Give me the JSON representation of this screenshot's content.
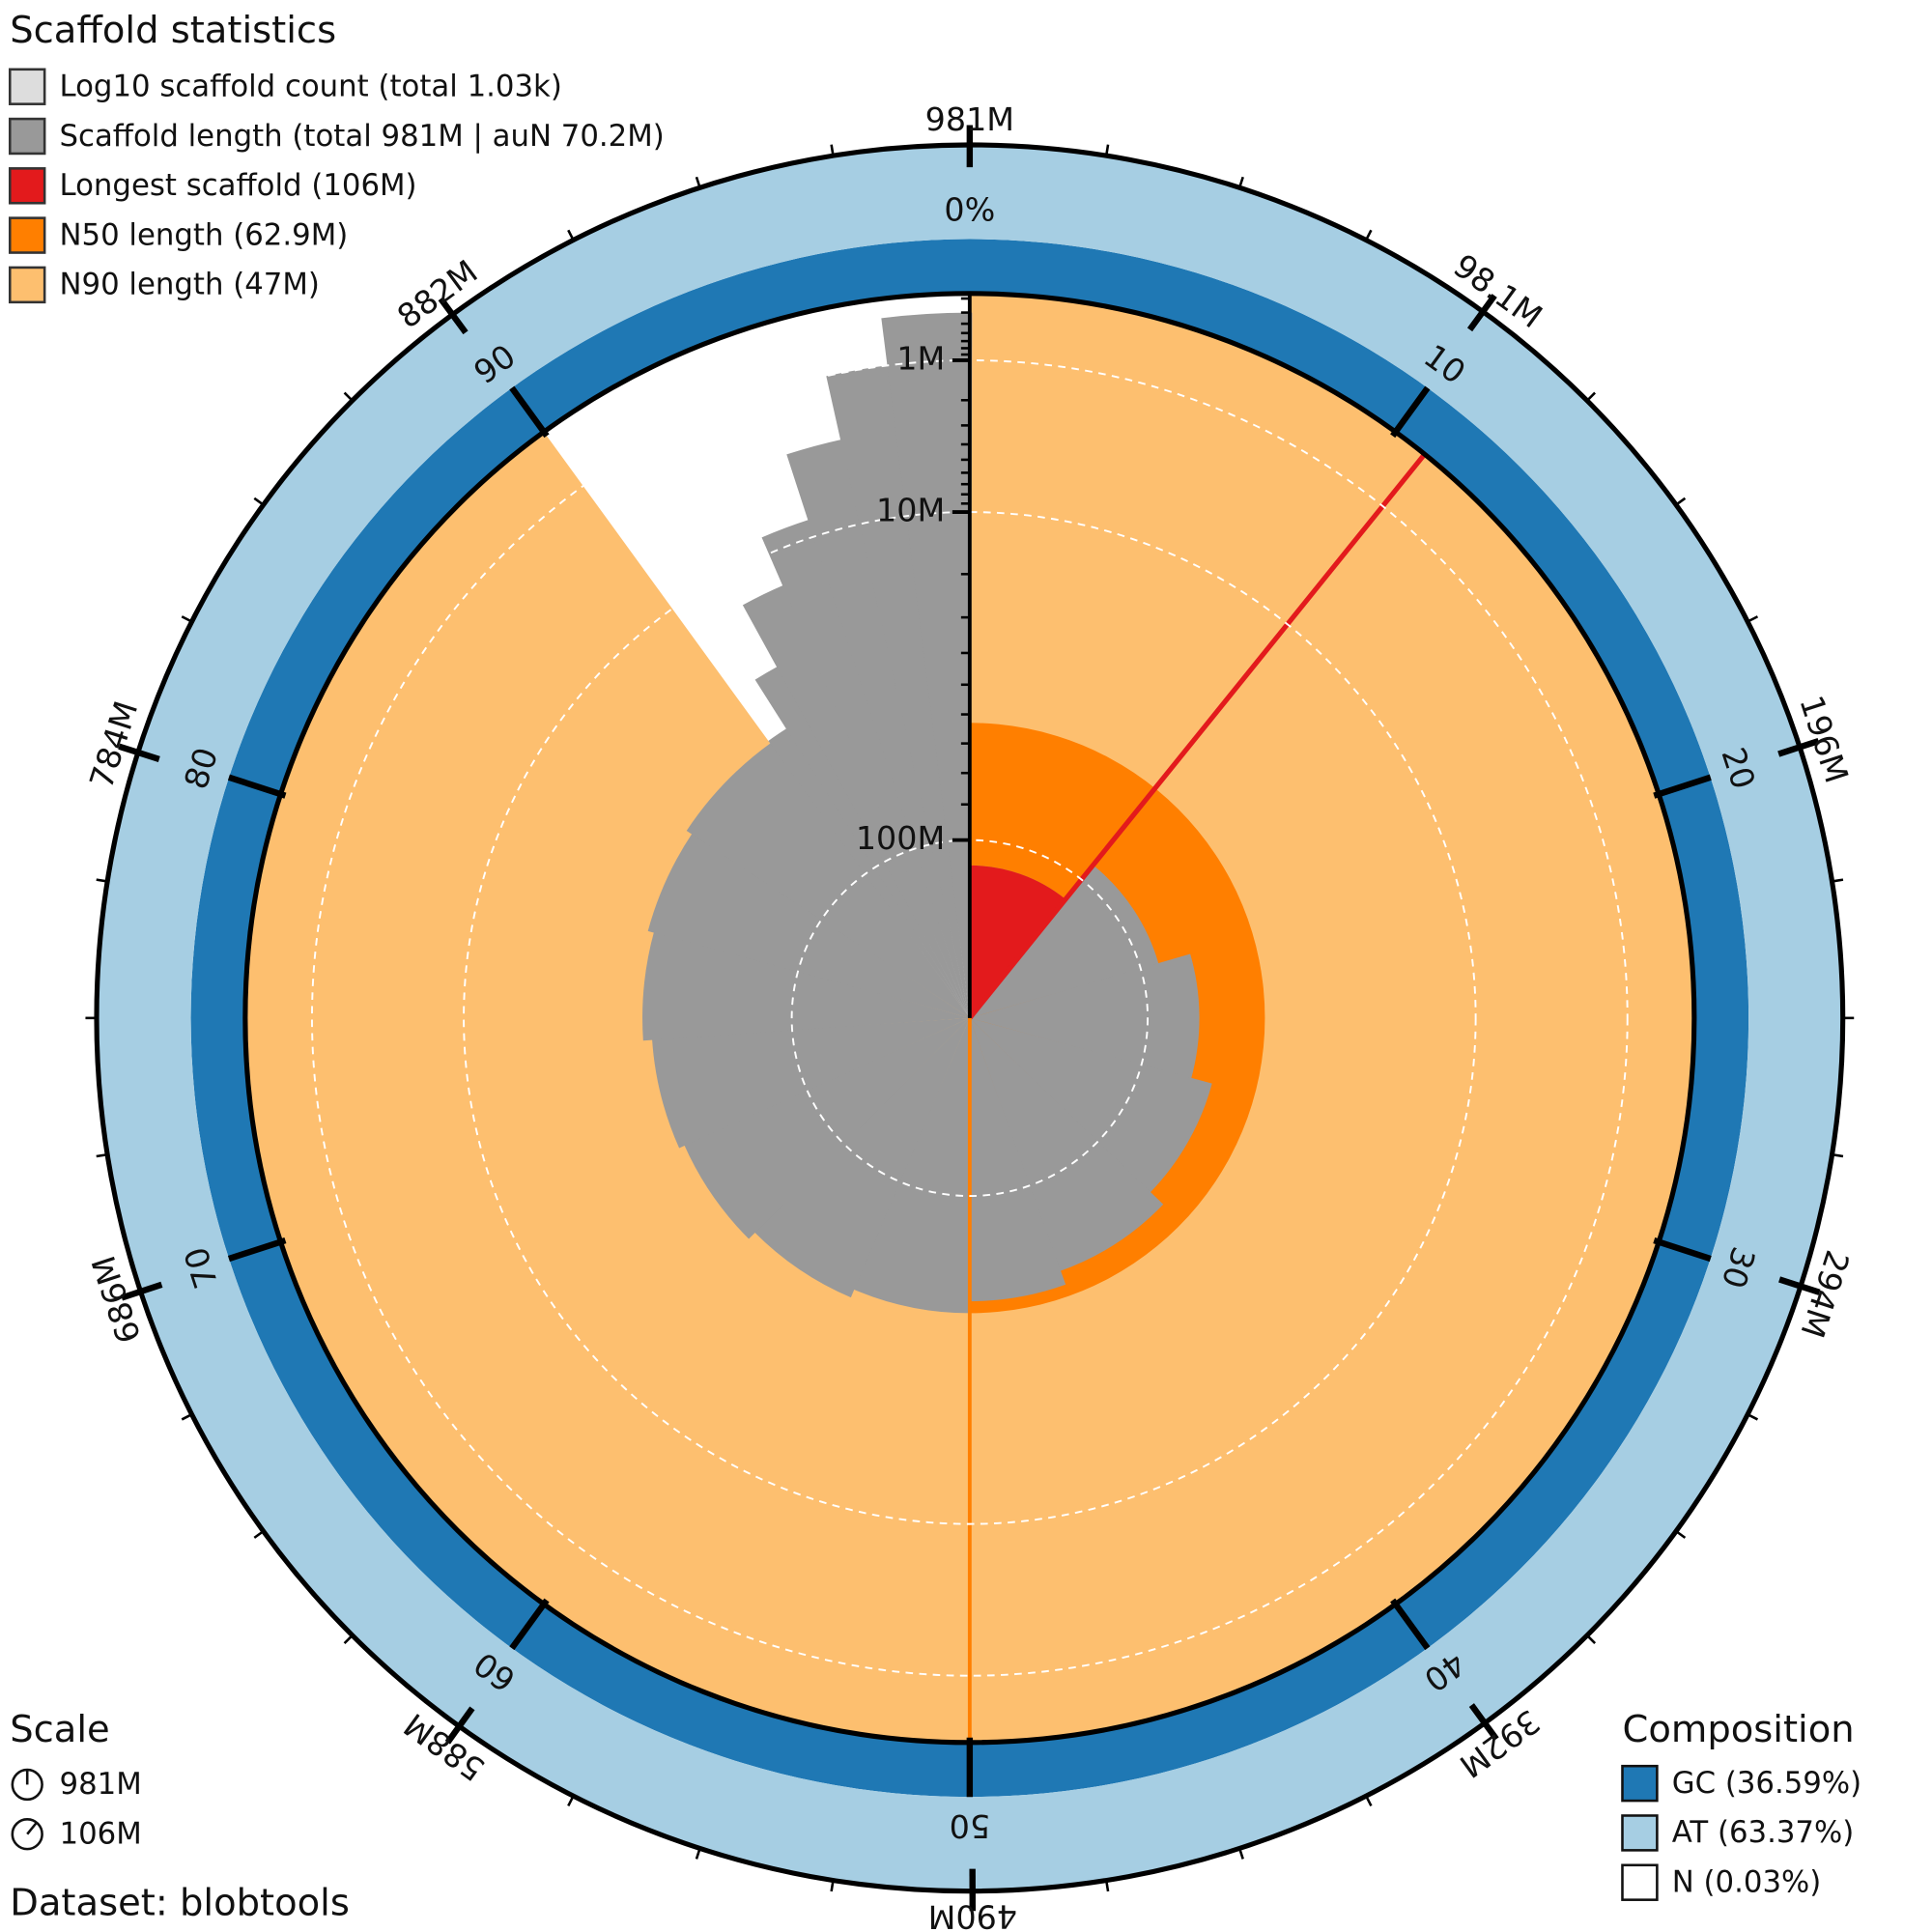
{
  "chart_data": {
    "type": "snail",
    "title": "Scaffold statistics",
    "scaffold_count": {
      "label": "Log10 scaffold count (total 1.03k)",
      "color": "#dddddd"
    },
    "scaffold_length": {
      "label": "Scaffold length (total 981M | auN 70.2M)",
      "color": "#999999"
    },
    "longest": {
      "value": 106000000,
      "label": "Longest scaffold (106M)",
      "color": "#e31a1c"
    },
    "n50": {
      "value": 62900000,
      "label": "N50 length (62.9M)",
      "color": "#ff7f00"
    },
    "n90": {
      "value": 47000000,
      "label": "N90 length (47M)",
      "color": "#fdbf6f"
    },
    "xlim": [
      0,
      981000000
    ],
    "xticks": [
      {
        "value": 981000000,
        "label": "981M"
      },
      {
        "value": 98100000,
        "label": "98.1M"
      },
      {
        "value": 196000000,
        "label": "196M"
      },
      {
        "value": 294000000,
        "label": "294M"
      },
      {
        "value": 392000000,
        "label": "392M"
      },
      {
        "value": 490000000,
        "label": "490M"
      },
      {
        "value": 588000000,
        "label": "588M"
      },
      {
        "value": 686000000,
        "label": "686M"
      },
      {
        "value": 784000000,
        "label": "784M"
      },
      {
        "value": 882000000,
        "label": "882M"
      }
    ],
    "plim": [
      0,
      100
    ],
    "pticks": [
      {
        "value": 0,
        "label": "0%"
      },
      10,
      20,
      30,
      40,
      50,
      60,
      70,
      80,
      90
    ],
    "rlim": [
      120000000,
      270000
    ],
    "rticks": [
      {
        "value": 1000000,
        "label": "1M"
      },
      {
        "value": 10000000,
        "label": "10M"
      },
      {
        "value": 100000000,
        "label": "100M"
      }
    ],
    "profile": {
      "percent": [
        0,
        10.8,
        20.5,
        29.2,
        37.2,
        44.5,
        50,
        56.4,
        62.5,
        68.3,
        73.9,
        79.2,
        84.3,
        90,
        91,
        92,
        93.5,
        95,
        96.5,
        98,
        100
      ],
      "lengths": [
        106000000,
        95000000,
        85000000,
        78000000,
        72000000,
        67000000,
        62900000,
        60000000,
        57000000,
        55000000,
        52000000,
        50000000,
        48000000,
        47000000,
        30000000,
        15000000,
        8000000,
        3000000,
        1000000,
        400000
      ]
    },
    "scale_title": "Scale",
    "scale_labels": [
      "981M",
      "106M"
    ],
    "dataset": "Dataset: blobtools",
    "composition_title": "Composition",
    "composition": [
      {
        "name": "GC (36.59%)",
        "value": 36.59,
        "color": "#1f78b4"
      },
      {
        "name": "AT (63.37%)",
        "value": 63.37,
        "color": "#a6cee3"
      },
      {
        "name": "N (0.03%)",
        "value": 0.03,
        "color": "#ffffff"
      }
    ]
  }
}
